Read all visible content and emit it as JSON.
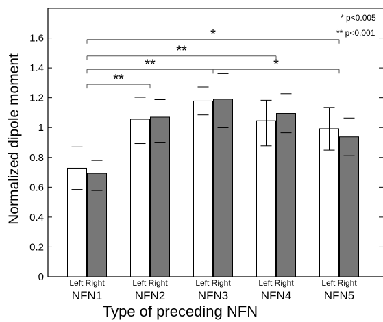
{
  "chart_data": {
    "type": "bar",
    "xlabel": "Type of preceding NFN",
    "ylabel": "Normalized dipole moment",
    "ylim": [
      0,
      1.8
    ],
    "yticks": [
      0,
      0.2,
      0.4,
      0.6,
      0.8,
      1,
      1.2,
      1.4,
      1.6
    ],
    "ytick_labels": [
      "0",
      "0.2",
      "0.4",
      "0.6",
      "0.8",
      "1",
      "1.2",
      "1.4",
      "1.6"
    ],
    "categories": [
      "NFN1",
      "NFN2",
      "NFN3",
      "NFN4",
      "NFN5"
    ],
    "sub_labels": [
      "Left",
      "Right"
    ],
    "series": [
      {
        "name": "Left",
        "color": "#ffffff",
        "values": [
          0.728,
          1.056,
          1.178,
          1.046,
          0.992
        ],
        "err_low": [
          0.585,
          0.893,
          1.085,
          0.878,
          0.849
        ],
        "err_high": [
          0.871,
          1.203,
          1.272,
          1.183,
          1.135
        ]
      },
      {
        "name": "Right",
        "color": "#777777",
        "values": [
          0.693,
          1.07,
          1.19,
          1.095,
          0.938
        ],
        "err_low": [
          0.578,
          0.902,
          0.999,
          0.966,
          0.812
        ],
        "err_high": [
          0.78,
          1.187,
          1.362,
          1.227,
          1.064
        ]
      }
    ],
    "grid": false,
    "significance": [
      {
        "from": "NFN1",
        "to": "NFN2",
        "y": 1.29,
        "label": "**"
      },
      {
        "from": "NFN1",
        "to": "NFN3",
        "y": 1.39,
        "label": "**"
      },
      {
        "from": "NFN1",
        "to": "NFN4",
        "y": 1.48,
        "label": "**"
      },
      {
        "from": "NFN1",
        "to": "NFN5",
        "y": 1.59,
        "label": "*"
      },
      {
        "from": "NFN3",
        "to": "NFN5",
        "y": 1.39,
        "label": "*"
      }
    ],
    "legend_notes": [
      "* p<0.005",
      "** p<0.001"
    ],
    "legend_placement": "top-right"
  }
}
